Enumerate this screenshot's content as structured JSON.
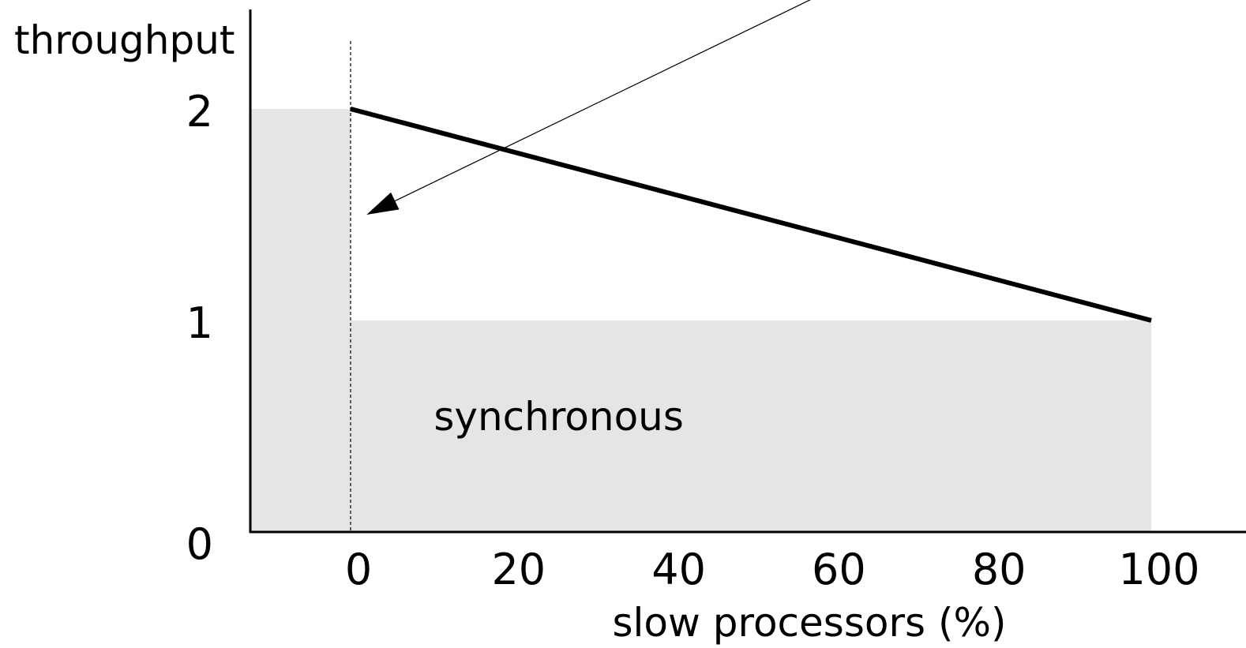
{
  "chart_data": {
    "type": "line",
    "title": "",
    "xlabel": "slow processors (%)",
    "ylabel": "throughput",
    "x_ticks": [
      0,
      20,
      40,
      60,
      80,
      100
    ],
    "y_ticks": [
      0,
      1,
      2
    ],
    "xlim": [
      -13,
      113
    ],
    "ylim": [
      0,
      2
    ],
    "grid": false,
    "legend": "none",
    "series": [
      {
        "x": [
          0,
          100
        ],
        "y": [
          2,
          1
        ],
        "color": "#000000"
      }
    ],
    "shaded_regions": [
      {
        "x0": -13,
        "x1": 0,
        "y": 2,
        "color": "#e5e5e5"
      },
      {
        "x0": 0,
        "x1": 100,
        "y": 1,
        "color": "#e5e5e5",
        "label": "synchronous"
      }
    ],
    "reference_line": {
      "x": 0,
      "style": "dashed"
    },
    "annotation_arrow": {
      "from": [
        62,
        2.6
      ],
      "to": [
        2,
        1.5
      ]
    }
  }
}
